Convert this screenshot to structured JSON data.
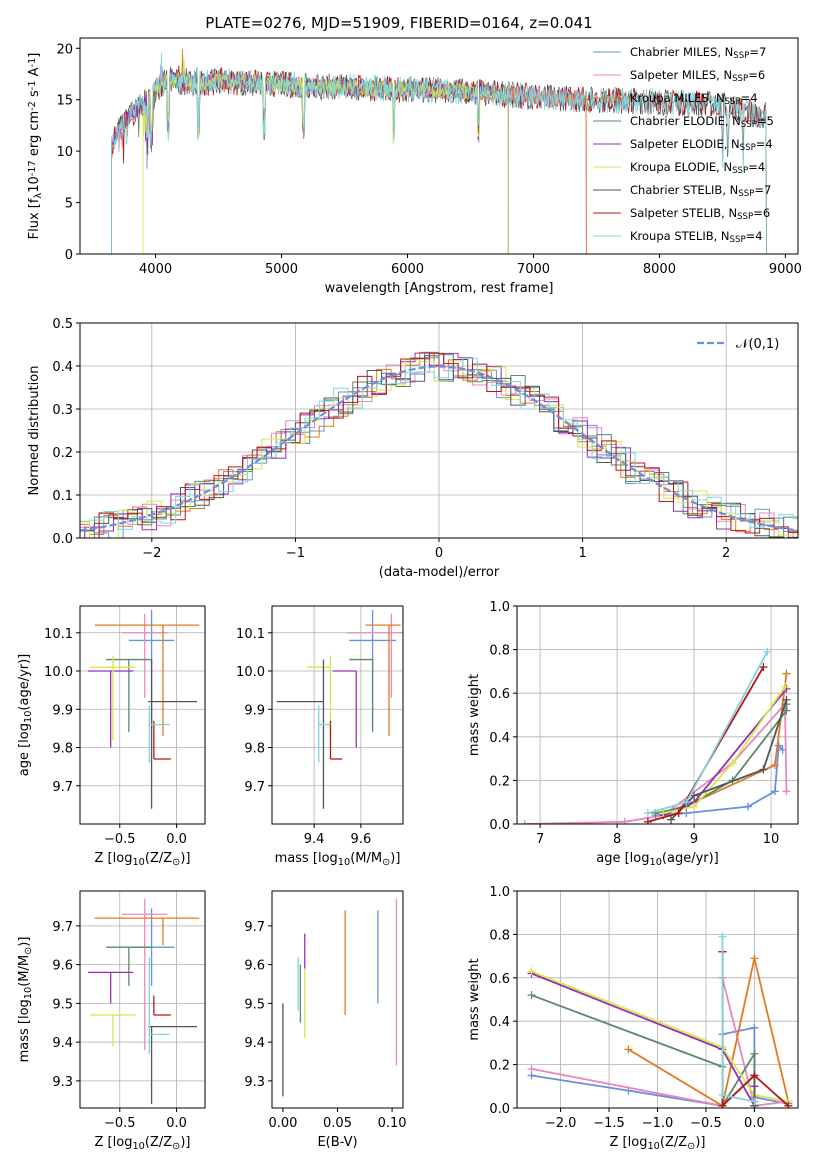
{
  "colors": {
    "chabrier_miles": "#6a8fdc",
    "salpeter_miles": "#e887bf",
    "kroupa_miles": "#e07b24",
    "chabrier_elodie": "#5a8a68",
    "salpeter_elodie": "#9a2eb2",
    "kroupa_elodie": "#d6e84a",
    "chabrier_stelib": "#555555",
    "salpeter_stelib": "#b51818",
    "kroupa_stelib": "#7fd6dc",
    "normal_curve": "#6a8fdc"
  },
  "chart_data": [
    {
      "id": "spectrum",
      "type": "line",
      "title": "PLATE=0276, MJD=51909, FIBERID=0164, z=0.041",
      "xlabel": "wavelength [Angstrom, rest frame]",
      "ylabel": "Flux [f$_\\lambda$10$^{-17}$ erg cm$^{-2}$ s$^{-1}$ A$^{-1}$]",
      "xlim": [
        3400,
        9100
      ],
      "ylim": [
        0,
        21
      ],
      "xticks": [
        4000,
        5000,
        6000,
        7000,
        8000,
        9000
      ],
      "yticks": [
        0,
        5,
        10,
        15,
        20
      ],
      "grid": false,
      "legend_position": "top-right",
      "series": [
        {
          "name": "Chabrier MILES, N$_{SSP}$=7",
          "color_key": "chabrier_miles"
        },
        {
          "name": "Salpeter MILES, N$_{SSP}$=6",
          "color_key": "salpeter_miles"
        },
        {
          "name": "Kroupa MILES, N$_{SSP}$=4",
          "color_key": "kroupa_miles"
        },
        {
          "name": "Chabrier ELODIE, N$_{SSP}$=5",
          "color_key": "chabrier_elodie"
        },
        {
          "name": "Salpeter ELODIE, N$_{SSP}$=4",
          "color_key": "salpeter_elodie"
        },
        {
          "name": "Kroupa ELODIE, N$_{SSP}$=4",
          "color_key": "kroupa_elodie"
        },
        {
          "name": "Chabrier STELIB, N$_{SSP}$=7",
          "color_key": "chabrier_stelib"
        },
        {
          "name": "Salpeter STELIB, N$_{SSP}$=6",
          "color_key": "salpeter_stelib"
        },
        {
          "name": "Kroupa STELIB, N$_{SSP}$=4",
          "color_key": "kroupa_stelib"
        }
      ],
      "spectrum_shape": [
        [
          3650,
          10.5
        ],
        [
          3700,
          12
        ],
        [
          3800,
          13.5
        ],
        [
          3900,
          14.5
        ],
        [
          4000,
          16
        ],
        [
          4100,
          17
        ],
        [
          4300,
          16.5
        ],
        [
          4500,
          16.8
        ],
        [
          5000,
          16.5
        ],
        [
          5500,
          16.2
        ],
        [
          6000,
          16.0
        ],
        [
          6500,
          15.8
        ],
        [
          7000,
          15.3
        ],
        [
          7500,
          15.0
        ],
        [
          8000,
          14.8
        ],
        [
          8500,
          14.5
        ],
        [
          8800,
          13.5
        ]
      ],
      "spectrum_ranges": {
        "chabrier_miles": [
          3650,
          7420
        ],
        "salpeter_miles": [
          3650,
          7420
        ],
        "kroupa_miles": [
          3650,
          7420
        ],
        "chabrier_elodie": [
          3650,
          6800
        ],
        "salpeter_elodie": [
          3650,
          6800
        ],
        "kroupa_elodie": [
          3900,
          6800
        ],
        "chabrier_stelib": [
          3650,
          8850
        ],
        "salpeter_stelib": [
          3650,
          8850
        ],
        "kroupa_stelib": [
          3650,
          8850
        ]
      }
    },
    {
      "id": "residuals",
      "type": "histogram",
      "xlabel": "(data-model)/error",
      "ylabel": "Normed distribution",
      "xlim": [
        -2.5,
        2.5
      ],
      "ylim": [
        0,
        0.5
      ],
      "xticks": [
        -2,
        -1,
        0,
        1,
        2
      ],
      "yticks": [
        0.0,
        0.1,
        0.2,
        0.3,
        0.4,
        0.5
      ],
      "grid": true,
      "legend_position": "top-right",
      "legend": "$\\mathcal{N}(0,1)$",
      "bin_width": 0.1
    },
    {
      "id": "age_vs_Z",
      "type": "errorbar",
      "xlabel": "Z [log$_{10}$(Z/Z$_\\odot$)]",
      "ylabel": "age  [log$_{10}$(age/yr)]",
      "xlim": [
        -0.85,
        0.25
      ],
      "ylim": [
        9.6,
        10.17
      ],
      "xticks": [
        -0.5,
        0.0
      ],
      "yticks": [
        9.7,
        9.8,
        9.9,
        10.0,
        10.1
      ],
      "grid": true,
      "points": [
        {
          "key": "chabrier_miles",
          "x": -0.22,
          "xerr": [
            0.2,
            0.2
          ],
          "y": 10.08,
          "yerr": [
            0.23,
            0.08
          ]
        },
        {
          "key": "salpeter_miles",
          "x": -0.28,
          "xerr": [
            0.2,
            0.2
          ],
          "y": 10.1,
          "yerr": [
            0.17,
            0.05
          ]
        },
        {
          "key": "kroupa_miles",
          "x": -0.12,
          "xerr": [
            0.6,
            0.32
          ],
          "y": 10.12,
          "yerr": [
            0.29,
            0.0
          ]
        },
        {
          "key": "chabrier_elodie",
          "x": -0.42,
          "xerr": [
            0.2,
            0.2
          ],
          "y": 10.03,
          "yerr": [
            0.19,
            0.0
          ]
        },
        {
          "key": "salpeter_elodie",
          "x": -0.58,
          "xerr": [
            0.2,
            0.2
          ],
          "y": 10.0,
          "yerr": [
            0.2,
            0.0
          ]
        },
        {
          "key": "kroupa_elodie",
          "x": -0.56,
          "xerr": [
            0.2,
            0.2
          ],
          "y": 10.01,
          "yerr": [
            0.19,
            0.03
          ]
        },
        {
          "key": "chabrier_stelib",
          "x": -0.22,
          "xerr": [
            0.03,
            0.4
          ],
          "y": 9.92,
          "yerr": [
            0.28,
            0.11
          ]
        },
        {
          "key": "salpeter_stelib",
          "x": -0.2,
          "xerr": [
            0.0,
            0.15
          ],
          "y": 9.77,
          "yerr": [
            0.0,
            0.1
          ]
        },
        {
          "key": "kroupa_stelib",
          "x": -0.24,
          "xerr": [
            0.0,
            0.18
          ],
          "y": 9.86,
          "yerr": [
            0.1,
            0.05
          ]
        }
      ]
    },
    {
      "id": "age_vs_mass",
      "type": "errorbar",
      "xlabel": "mass [log$_{10}$(M/M$_\\odot$)]",
      "ylabel": "",
      "xlim": [
        9.22,
        9.78
      ],
      "ylim": [
        9.6,
        10.17
      ],
      "xticks": [
        9.4,
        9.6
      ],
      "yticks": [
        9.7,
        9.8,
        9.9,
        10.0,
        10.1
      ],
      "grid": true,
      "points": [
        {
          "key": "chabrier_miles",
          "x": 9.65,
          "xerr": [
            0.1,
            0.1
          ],
          "y": 10.08,
          "yerr": [
            0.23,
            0.08
          ]
        },
        {
          "key": "salpeter_miles",
          "x": 9.73,
          "xerr": [
            0.19,
            0.05
          ],
          "y": 10.1,
          "yerr": [
            0.17,
            0.05
          ]
        },
        {
          "key": "kroupa_miles",
          "x": 9.72,
          "xerr": [
            0.1,
            0.05
          ],
          "y": 10.12,
          "yerr": [
            0.29,
            0.0
          ]
        },
        {
          "key": "chabrier_elodie",
          "x": 9.65,
          "xerr": [
            0.1,
            0.0
          ],
          "y": 10.03,
          "yerr": [
            0.19,
            0.0
          ]
        },
        {
          "key": "salpeter_elodie",
          "x": 9.58,
          "xerr": [
            0.1,
            0.0
          ],
          "y": 10.0,
          "yerr": [
            0.2,
            0.0
          ]
        },
        {
          "key": "kroupa_elodie",
          "x": 9.47,
          "xerr": [
            0.1,
            0.0
          ],
          "y": 10.01,
          "yerr": [
            0.19,
            0.03
          ]
        },
        {
          "key": "chabrier_stelib",
          "x": 9.44,
          "xerr": [
            0.2,
            0.0
          ],
          "y": 9.92,
          "yerr": [
            0.28,
            0.11
          ]
        },
        {
          "key": "salpeter_stelib",
          "x": 9.47,
          "xerr": [
            0.0,
            0.05
          ],
          "y": 9.77,
          "yerr": [
            0.0,
            0.1
          ]
        },
        {
          "key": "kroupa_stelib",
          "x": 9.42,
          "xerr": [
            0.0,
            0.05
          ],
          "y": 9.86,
          "yerr": [
            0.1,
            0.05
          ]
        }
      ]
    },
    {
      "id": "weight_vs_age",
      "type": "line",
      "xlabel": "age  [log$_{10}$(age/yr)]",
      "ylabel": "mass weight",
      "xlim": [
        6.7,
        10.35
      ],
      "ylim": [
        0,
        1.0
      ],
      "xticks": [
        7,
        8,
        9,
        10
      ],
      "yticks": [
        0.0,
        0.2,
        0.4,
        0.6,
        0.8,
        1.0
      ],
      "grid": true,
      "series": [
        {
          "key": "chabrier_miles",
          "x": [
            8.5,
            8.9,
            9.7,
            10.05,
            10.1,
            10.15
          ],
          "y": [
            0.04,
            0.05,
            0.08,
            0.15,
            0.36,
            0.34
          ]
        },
        {
          "key": "salpeter_miles",
          "x": [
            6.8,
            8.1,
            8.6,
            9.5,
            10.18,
            10.2
          ],
          "y": [
            0.0,
            0.01,
            0.04,
            0.28,
            0.55,
            0.15
          ]
        },
        {
          "key": "kroupa_miles",
          "x": [
            8.6,
            9.0,
            10.05,
            10.2
          ],
          "y": [
            0.05,
            0.1,
            0.27,
            0.69
          ]
        },
        {
          "key": "chabrier_elodie",
          "x": [
            8.5,
            8.9,
            9.5,
            10.2,
            10.2
          ],
          "y": [
            0.05,
            0.08,
            0.2,
            0.52,
            0.55
          ]
        },
        {
          "key": "salpeter_elodie",
          "x": [
            8.6,
            9.0,
            10.2
          ],
          "y": [
            0.04,
            0.1,
            0.62
          ]
        },
        {
          "key": "kroupa_elodie",
          "x": [
            8.6,
            9.0,
            9.5,
            10.18
          ],
          "y": [
            0.05,
            0.08,
            0.28,
            0.63
          ]
        },
        {
          "key": "chabrier_stelib",
          "x": [
            8.7,
            9.0,
            9.9,
            10.2
          ],
          "y": [
            0.02,
            0.13,
            0.25,
            0.57
          ]
        },
        {
          "key": "salpeter_stelib",
          "x": [
            8.4,
            8.8,
            9.9
          ],
          "y": [
            0.01,
            0.05,
            0.72
          ]
        },
        {
          "key": "kroupa_stelib",
          "x": [
            8.4,
            8.9,
            9.95
          ],
          "y": [
            0.05,
            0.1,
            0.79
          ]
        }
      ]
    },
    {
      "id": "mass_vs_Z",
      "type": "errorbar",
      "xlabel": "Z [log$_{10}$(Z/Z$_\\odot$)]",
      "ylabel": "mass [log$_{10}$(M/M$_\\odot$)]",
      "xlim": [
        -0.85,
        0.25
      ],
      "ylim": [
        9.23,
        9.79
      ],
      "xticks": [
        -0.5,
        0.0
      ],
      "yticks": [
        9.3,
        9.4,
        9.5,
        9.6,
        9.7
      ],
      "grid": true,
      "points": [
        {
          "key": "chabrier_miles",
          "x": -0.22,
          "xerr": [
            0.2,
            0.2
          ],
          "y": 9.645,
          "yerr": [
            0.1,
            0.1
          ]
        },
        {
          "key": "salpeter_miles",
          "x": -0.28,
          "xerr": [
            0.2,
            0.2
          ],
          "y": 9.73,
          "yerr": [
            0.35,
            0.04
          ]
        },
        {
          "key": "kroupa_miles",
          "x": -0.12,
          "xerr": [
            0.6,
            0.32
          ],
          "y": 9.72,
          "yerr": [
            0.07,
            0.0
          ]
        },
        {
          "key": "chabrier_elodie",
          "x": -0.42,
          "xerr": [
            0.2,
            0.2
          ],
          "y": 9.645,
          "yerr": [
            0.1,
            0.0
          ]
        },
        {
          "key": "salpeter_elodie",
          "x": -0.58,
          "xerr": [
            0.2,
            0.2
          ],
          "y": 9.58,
          "yerr": [
            0.08,
            0.0
          ]
        },
        {
          "key": "kroupa_elodie",
          "x": -0.56,
          "xerr": [
            0.2,
            0.2
          ],
          "y": 9.47,
          "yerr": [
            0.08,
            0.0
          ]
        },
        {
          "key": "chabrier_stelib",
          "x": -0.22,
          "xerr": [
            0.03,
            0.4
          ],
          "y": 9.44,
          "yerr": [
            0.2,
            0.0
          ]
        },
        {
          "key": "salpeter_stelib",
          "x": -0.2,
          "xerr": [
            0.0,
            0.15
          ],
          "y": 9.47,
          "yerr": [
            0.0,
            0.05
          ]
        },
        {
          "key": "kroupa_stelib",
          "x": -0.24,
          "xerr": [
            0.0,
            0.18
          ],
          "y": 9.42,
          "yerr": [
            0.05,
            0.2
          ]
        }
      ]
    },
    {
      "id": "mass_vs_ebv",
      "type": "errorbar",
      "xlabel": "E(B-V)",
      "ylabel": "",
      "xlim": [
        -0.01,
        0.11
      ],
      "ylim": [
        9.23,
        9.79
      ],
      "xticks": [
        0.0,
        0.05,
        0.1
      ],
      "xticklabels": [
        "0.00",
        "0.05",
        "0.10"
      ],
      "yticks": [
        9.3,
        9.4,
        9.5,
        9.6,
        9.7
      ],
      "grid": false,
      "points": [
        {
          "key": "chabrier_miles",
          "x": 0.087,
          "y": 9.5,
          "yerr": [
            0.0,
            0.24
          ]
        },
        {
          "key": "salpeter_miles",
          "x": 0.104,
          "y": 9.34,
          "yerr": [
            0.0,
            0.43
          ]
        },
        {
          "key": "kroupa_miles",
          "x": 0.057,
          "y": 9.47,
          "yerr": [
            0.0,
            0.27
          ]
        },
        {
          "key": "chabrier_elodie",
          "x": 0.016,
          "y": 9.45,
          "yerr": [
            0.0,
            0.15
          ]
        },
        {
          "key": "salpeter_elodie",
          "x": 0.02,
          "y": 9.59,
          "yerr": [
            0.0,
            0.09
          ]
        },
        {
          "key": "kroupa_elodie",
          "x": 0.02,
          "y": 9.41,
          "yerr": [
            0.0,
            0.18
          ]
        },
        {
          "key": "chabrier_stelib",
          "x": 0.0,
          "y": 9.26,
          "yerr": [
            0.0,
            0.24
          ]
        },
        {
          "key": "kroupa_stelib",
          "x": 0.014,
          "y": 9.48,
          "yerr": [
            0.0,
            0.14
          ]
        }
      ]
    },
    {
      "id": "weight_vs_Z",
      "type": "line",
      "xlabel": "Z [log$_{10}$(Z/Z$_\\odot$)]",
      "ylabel": "mass weight",
      "xlim": [
        -2.45,
        0.45
      ],
      "ylim": [
        0,
        1.0
      ],
      "xticks": [
        -2.0,
        -1.5,
        -1.0,
        -0.5,
        0.0
      ],
      "yticks": [
        0.0,
        0.2,
        0.4,
        0.6,
        0.8,
        1.0
      ],
      "grid": true,
      "series": [
        {
          "key": "chabrier_miles",
          "x": [
            -2.3,
            -1.3,
            -0.33,
            -0.33,
            0.0,
            0.0,
            0.35
          ],
          "y": [
            0.15,
            0.08,
            0.01,
            0.34,
            0.37,
            0.05,
            0.02
          ]
        },
        {
          "key": "salpeter_miles",
          "x": [
            -2.3,
            -0.33,
            -0.33,
            0.0,
            0.35
          ],
          "y": [
            0.18,
            0.01,
            0.6,
            0.01,
            0.03
          ]
        },
        {
          "key": "kroupa_miles",
          "x": [
            -1.3,
            -0.33,
            0.0,
            0.35
          ],
          "y": [
            0.27,
            0.01,
            0.69,
            0.03
          ]
        },
        {
          "key": "chabrier_elodie",
          "x": [
            -2.3,
            -0.33,
            -0.33,
            0.0,
            0.0
          ],
          "y": [
            0.52,
            0.19,
            0.01,
            0.25,
            0.03
          ]
        },
        {
          "key": "salpeter_elodie",
          "x": [
            -2.3,
            -0.33,
            0.0,
            0.0
          ],
          "y": [
            0.62,
            0.27,
            0.01,
            0.1
          ]
        },
        {
          "key": "kroupa_elodie",
          "x": [
            -2.3,
            -0.33,
            0.0,
            0.35
          ],
          "y": [
            0.63,
            0.28,
            0.06,
            0.03
          ]
        },
        {
          "key": "chabrier_stelib",
          "x": [
            -0.33,
            -0.33,
            0.0,
            0.0
          ],
          "y": [
            0.72,
            0.01,
            0.15,
            0.01
          ]
        },
        {
          "key": "salpeter_stelib",
          "x": [
            -0.33,
            -0.33,
            0.0,
            0.35
          ],
          "y": [
            0.72,
            0.01,
            0.15,
            0.01
          ]
        },
        {
          "key": "kroupa_stelib",
          "x": [
            -0.33,
            -0.33,
            0.0
          ],
          "y": [
            0.79,
            0.06,
            0.03
          ]
        }
      ]
    }
  ]
}
